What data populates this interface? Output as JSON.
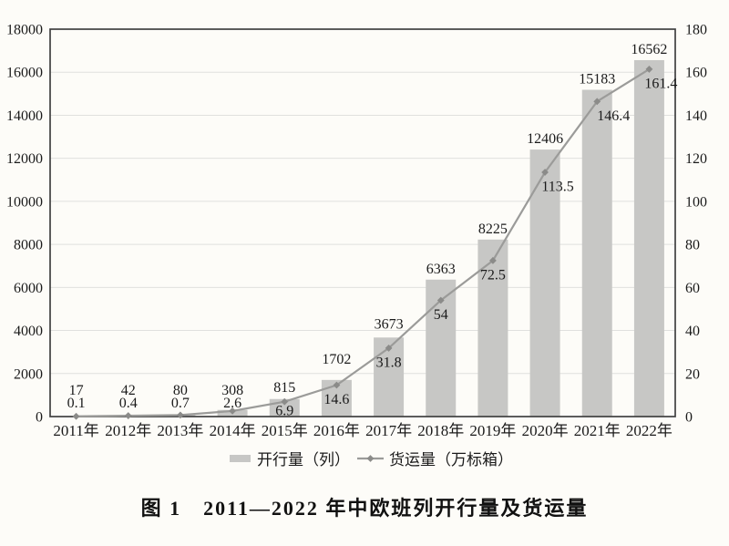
{
  "figure": {
    "caption": "图 1　2011—2022 年中欧班列开行量及货运量"
  },
  "chart_data": {
    "type": "bar+line",
    "title": "",
    "categories": [
      "2011年",
      "2012年",
      "2013年",
      "2014年",
      "2015年",
      "2016年",
      "2017年",
      "2018年",
      "2019年",
      "2020年",
      "2021年",
      "2022年"
    ],
    "series": [
      {
        "name": "开行量（列）",
        "type": "bar",
        "axis": "left",
        "values": [
          17,
          42,
          80,
          308,
          815,
          1702,
          3673,
          6363,
          8225,
          12406,
          15183,
          16562
        ],
        "color": "#c7c7c5"
      },
      {
        "name": "货运量（万标箱）",
        "type": "line",
        "marker": "diamond",
        "axis": "right",
        "values": [
          0.1,
          0.4,
          0.7,
          2.6,
          6.9,
          14.6,
          31.8,
          54,
          72.5,
          113.5,
          146.4,
          161.4
        ],
        "color": "#9b9b99",
        "marker_color": "#8b8b89"
      }
    ],
    "left_axis": {
      "min": 0,
      "max": 18000,
      "step": 2000
    },
    "right_axis": {
      "min": 0,
      "max": 180,
      "step": 20
    },
    "grid": true,
    "grid_color": "#e0e0de",
    "axis_color": "#404040",
    "legend_position": "bottom",
    "data_labels": true
  }
}
